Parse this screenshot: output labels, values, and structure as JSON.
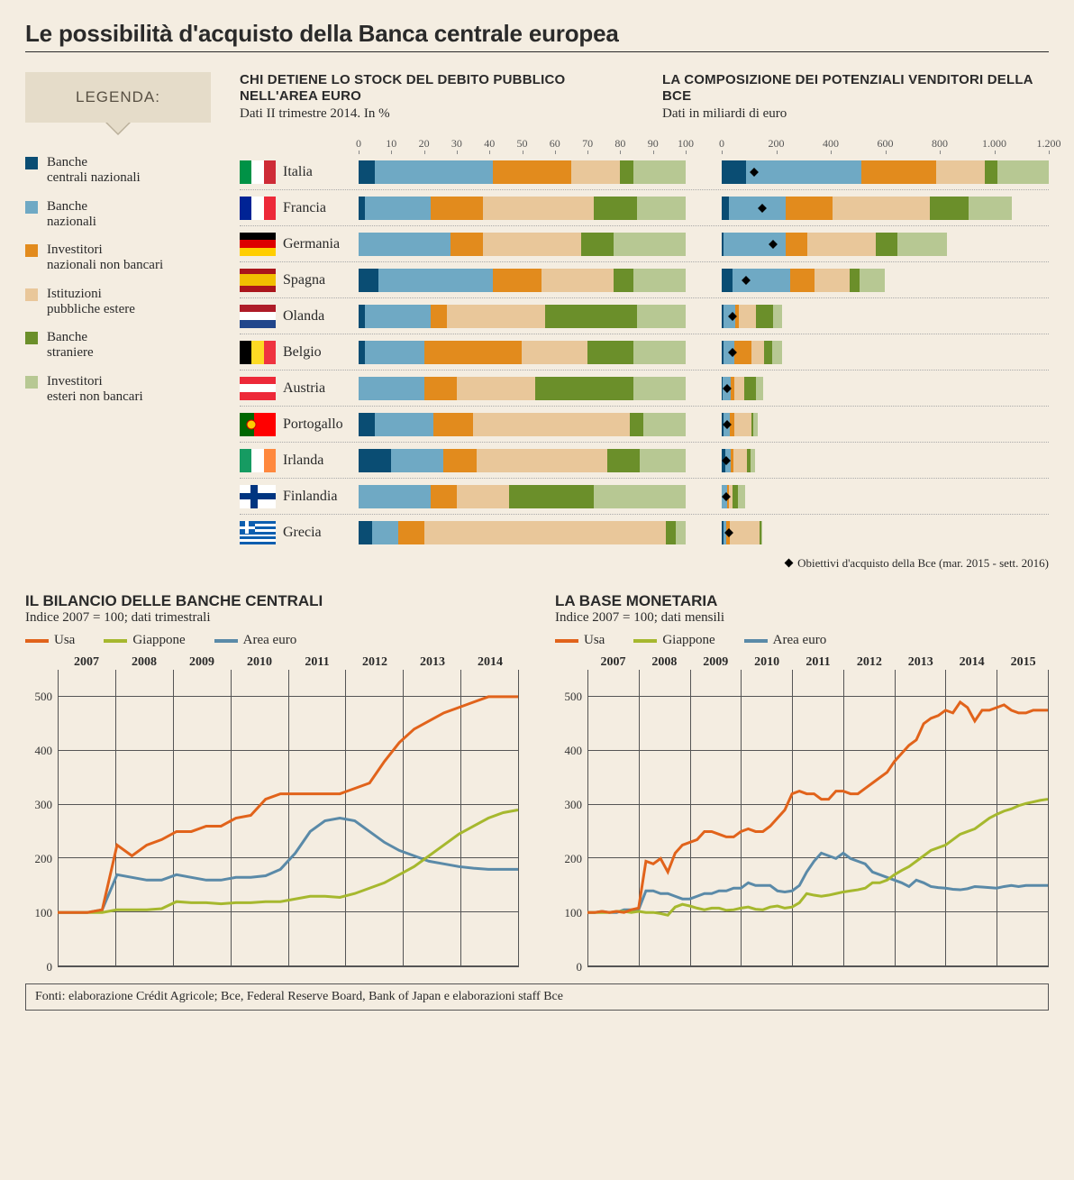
{
  "title": "Le possibilità d'acquisto della Banca centrale europea",
  "legend": {
    "title": "LEGENDA:",
    "items": [
      {
        "label": "Banche\ncentrali nazionali",
        "color": "#0a4d73"
      },
      {
        "label": "Banche\nnazionali",
        "color": "#6fa9c4"
      },
      {
        "label": "Investitori\nnazionali non bancari",
        "color": "#e28b1d"
      },
      {
        "label": "Istituzioni\npubbliche estere",
        "color": "#e9c79a"
      },
      {
        "label": "Banche\nstraniere",
        "color": "#6b8f2a"
      },
      {
        "label": "Investitori\nesteri non bancari",
        "color": "#b7c893"
      }
    ]
  },
  "segment_colors": [
    "#0a4d73",
    "#6fa9c4",
    "#e28b1d",
    "#e9c79a",
    "#6b8f2a",
    "#b7c893"
  ],
  "chart_left": {
    "title": "CHI DETIENE LO STOCK DEL DEBITO PUBBLICO NELL'AREA EURO",
    "subtitle": "Dati II trimestre 2014. In %",
    "xticks": [
      0,
      10,
      20,
      30,
      40,
      50,
      60,
      70,
      80,
      90,
      100
    ],
    "xmax": 100
  },
  "chart_right": {
    "title": "LA COMPOSIZIONE DEI POTENZIALI VENDITORI DELLA BCE",
    "subtitle": "Dati in miliardi di euro",
    "xticks": [
      0,
      200,
      400,
      600,
      800,
      "1.000",
      "1.200"
    ],
    "xmax": 1200
  },
  "countries": [
    {
      "name": "Italia",
      "flag": [
        "#009246",
        "#ffffff",
        "#ce2b37"
      ],
      "pct": [
        5,
        36,
        24,
        15,
        4,
        16
      ],
      "abs": [
        90,
        430,
        280,
        180,
        50,
        190
      ],
      "target": 120
    },
    {
      "name": "Francia",
      "flag": [
        "#002395",
        "#ffffff",
        "#ed2939"
      ],
      "pct": [
        2,
        20,
        16,
        34,
        13,
        15
      ],
      "abs": [
        25,
        210,
        170,
        360,
        140,
        160
      ],
      "target": 150
    },
    {
      "name": "Germania",
      "flag_h": [
        "#000000",
        "#dd0000",
        "#ffce00"
      ],
      "pct": [
        0,
        28,
        10,
        30,
        10,
        22
      ],
      "abs": [
        5,
        230,
        80,
        250,
        80,
        180
      ],
      "target": 190
    },
    {
      "name": "Spagna",
      "flag_h": [
        "#aa151b",
        "#f1bf00",
        "#aa151b"
      ],
      "flag_mid_big": true,
      "pct": [
        6,
        35,
        15,
        22,
        6,
        16
      ],
      "abs": [
        40,
        210,
        90,
        130,
        35,
        95
      ],
      "target": 90
    },
    {
      "name": "Olanda",
      "flag_h": [
        "#ae1c28",
        "#ffffff",
        "#21468b"
      ],
      "pct": [
        2,
        20,
        5,
        30,
        28,
        15
      ],
      "abs": [
        5,
        45,
        12,
        65,
        60,
        33
      ],
      "target": 40
    },
    {
      "name": "Belgio",
      "flag": [
        "#000000",
        "#fdda24",
        "#ef3340"
      ],
      "pct": [
        2,
        18,
        30,
        20,
        14,
        16
      ],
      "abs": [
        5,
        40,
        65,
        45,
        30,
        35
      ],
      "target": 40
    },
    {
      "name": "Austria",
      "flag_h": [
        "#ed2939",
        "#ffffff",
        "#ed2939"
      ],
      "pct": [
        0,
        20,
        10,
        24,
        30,
        16
      ],
      "abs": [
        2,
        30,
        15,
        35,
        45,
        25
      ],
      "target": 20
    },
    {
      "name": "Portogallo",
      "flag": [
        "#006600",
        "#ff0000"
      ],
      "flag_ratio": [
        0.4,
        0.6
      ],
      "flag_emblem": true,
      "pct": [
        5,
        18,
        12,
        48,
        4,
        13
      ],
      "abs": [
        6,
        24,
        16,
        64,
        5,
        17
      ],
      "target": 20
    },
    {
      "name": "Irlanda",
      "flag": [
        "#169b62",
        "#ffffff",
        "#ff883e"
      ],
      "pct": [
        10,
        16,
        10,
        40,
        10,
        14
      ],
      "abs": [
        12,
        20,
        12,
        50,
        12,
        18
      ],
      "target": 15
    },
    {
      "name": "Finlandia",
      "flag_special": "finland",
      "pct": [
        0,
        22,
        8,
        16,
        26,
        28
      ],
      "abs": [
        1,
        18,
        7,
        13,
        22,
        24
      ],
      "target": 15
    },
    {
      "name": "Grecia",
      "flag_special": "greece",
      "pct": [
        4,
        8,
        8,
        74,
        3,
        3
      ],
      "abs": [
        5,
        12,
        12,
        110,
        5,
        5
      ],
      "target": 25
    }
  ],
  "footnote": "Obiettivi d'acquisto della Bce (mar. 2015 - sett. 2016)",
  "line_charts": {
    "colors": {
      "usa": "#e1631b",
      "japan": "#a6b82e",
      "euro": "#5a8aa8"
    },
    "legend": {
      "usa": "Usa",
      "japan": "Giappone",
      "euro": "Area euro"
    },
    "ymax": 550,
    "ymin": 0,
    "yticks": [
      0,
      100,
      200,
      300,
      400,
      500
    ],
    "left": {
      "title": "IL BILANCIO DELLE BANCHE CENTRALI",
      "subtitle": "Indice 2007 = 100; dati trimestrali",
      "years": [
        2007,
        2008,
        2009,
        2010,
        2011,
        2012,
        2013,
        2014
      ],
      "usa": [
        100,
        100,
        100,
        105,
        225,
        205,
        225,
        235,
        250,
        250,
        260,
        260,
        275,
        280,
        310,
        320,
        320,
        320,
        320,
        320,
        330,
        340,
        380,
        415,
        440,
        455,
        470,
        480,
        490,
        500,
        500,
        500
      ],
      "japan": [
        100,
        100,
        100,
        100,
        105,
        105,
        105,
        107,
        120,
        118,
        118,
        116,
        118,
        118,
        120,
        120,
        125,
        130,
        130,
        128,
        135,
        145,
        155,
        170,
        185,
        205,
        225,
        245,
        260,
        275,
        285,
        290
      ],
      "euro": [
        100,
        100,
        100,
        105,
        170,
        165,
        160,
        160,
        170,
        165,
        160,
        160,
        165,
        165,
        168,
        180,
        210,
        250,
        270,
        275,
        270,
        250,
        230,
        215,
        205,
        195,
        190,
        185,
        182,
        180,
        180,
        180
      ]
    },
    "right": {
      "title": "LA BASE MONETARIA",
      "subtitle": "Indice 2007 = 100; dati mensili",
      "years": [
        2007,
        2008,
        2009,
        2010,
        2011,
        2012,
        2013,
        2014,
        2015
      ],
      "usa": [
        100,
        100,
        102,
        100,
        102,
        100,
        105,
        108,
        195,
        190,
        200,
        175,
        210,
        225,
        230,
        235,
        250,
        250,
        245,
        240,
        240,
        250,
        255,
        250,
        250,
        260,
        275,
        290,
        320,
        325,
        320,
        320,
        310,
        310,
        325,
        325,
        320,
        320,
        330,
        340,
        350,
        360,
        380,
        395,
        410,
        420,
        450,
        460,
        465,
        475,
        470,
        490,
        480,
        455,
        475,
        475,
        480,
        485,
        475,
        470,
        470,
        475,
        475,
        475
      ],
      "japan": [
        100,
        100,
        100,
        100,
        102,
        102,
        100,
        102,
        100,
        100,
        98,
        95,
        110,
        115,
        112,
        108,
        105,
        108,
        108,
        104,
        105,
        108,
        110,
        106,
        105,
        110,
        112,
        108,
        110,
        118,
        135,
        132,
        130,
        132,
        135,
        138,
        140,
        142,
        145,
        155,
        155,
        160,
        170,
        178,
        185,
        195,
        205,
        215,
        220,
        225,
        235,
        245,
        250,
        255,
        265,
        275,
        282,
        288,
        292,
        298,
        302,
        305,
        308,
        310
      ],
      "euro": [
        100,
        100,
        102,
        100,
        100,
        105,
        105,
        105,
        140,
        140,
        135,
        135,
        130,
        125,
        125,
        130,
        135,
        135,
        140,
        140,
        145,
        145,
        155,
        150,
        150,
        150,
        140,
        138,
        140,
        150,
        175,
        195,
        210,
        205,
        200,
        210,
        200,
        195,
        190,
        175,
        170,
        165,
        160,
        155,
        148,
        160,
        155,
        148,
        146,
        145,
        143,
        142,
        144,
        148,
        147,
        146,
        145,
        148,
        150,
        148,
        150,
        150,
        150,
        150
      ]
    }
  },
  "sources": "Fonti: elaborazione Crédit Agricole; Bce, Federal Reserve Board, Bank of Japan e elaborazioni staff Bce"
}
